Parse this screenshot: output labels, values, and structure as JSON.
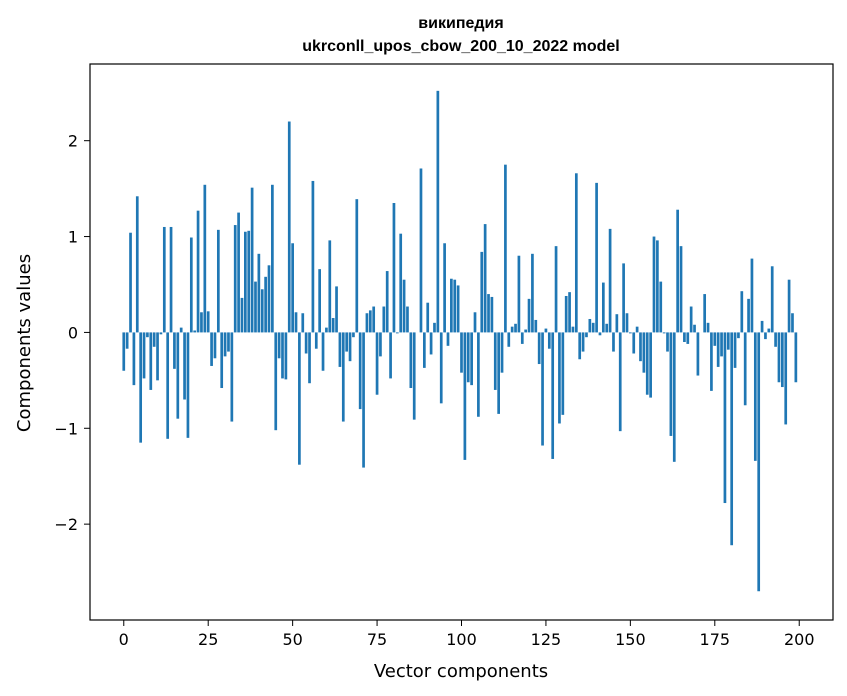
{
  "chart_data": {
    "type": "bar",
    "title_lines": [
      "википедия",
      "ukrconll_upos_cbow_200_10_2022 model"
    ],
    "xlabel": "Vector components",
    "ylabel": "Components values",
    "xlim": [
      -10,
      210
    ],
    "ylim": [
      -3.0,
      2.8
    ],
    "xticks": [
      0,
      25,
      50,
      75,
      100,
      125,
      150,
      175,
      200
    ],
    "xtick_labels": [
      "0",
      "25",
      "50",
      "75",
      "100",
      "125",
      "150",
      "175",
      "200"
    ],
    "yticks": [
      -2,
      -1,
      0,
      1,
      2
    ],
    "ytick_labels": [
      "−2",
      "−1",
      "0",
      "1",
      "2"
    ],
    "bar_color": "#1f77b4",
    "grid": false,
    "x": [
      0,
      1,
      2,
      3,
      4,
      5,
      6,
      7,
      8,
      9,
      10,
      11,
      12,
      13,
      14,
      15,
      16,
      17,
      18,
      19,
      20,
      21,
      22,
      23,
      24,
      25,
      26,
      27,
      28,
      29,
      30,
      31,
      32,
      33,
      34,
      35,
      36,
      37,
      38,
      39,
      40,
      41,
      42,
      43,
      44,
      45,
      46,
      47,
      48,
      49,
      50,
      51,
      52,
      53,
      54,
      55,
      56,
      57,
      58,
      59,
      60,
      61,
      62,
      63,
      64,
      65,
      66,
      67,
      68,
      69,
      70,
      71,
      72,
      73,
      74,
      75,
      76,
      77,
      78,
      79,
      80,
      81,
      82,
      83,
      84,
      85,
      86,
      87,
      88,
      89,
      90,
      91,
      92,
      93,
      94,
      95,
      96,
      97,
      98,
      99,
      100,
      101,
      102,
      103,
      104,
      105,
      106,
      107,
      108,
      109,
      110,
      111,
      112,
      113,
      114,
      115,
      116,
      117,
      118,
      119,
      120,
      121,
      122,
      123,
      124,
      125,
      126,
      127,
      128,
      129,
      130,
      131,
      132,
      133,
      134,
      135,
      136,
      137,
      138,
      139,
      140,
      141,
      142,
      143,
      144,
      145,
      146,
      147,
      148,
      149,
      150,
      151,
      152,
      153,
      154,
      155,
      156,
      157,
      158,
      159,
      160,
      161,
      162,
      163,
      164,
      165,
      166,
      167,
      168,
      169,
      170,
      171,
      172,
      173,
      174,
      175,
      176,
      177,
      178,
      179,
      180,
      181,
      182,
      183,
      184,
      185,
      186,
      187,
      188,
      189,
      190,
      191,
      192,
      193,
      194,
      195,
      196,
      197,
      198,
      199
    ],
    "values": [
      -0.4,
      -0.17,
      1.04,
      -0.55,
      1.42,
      -1.15,
      -0.48,
      -0.05,
      -0.6,
      -0.15,
      -0.5,
      -0.02,
      1.1,
      -1.11,
      1.1,
      -0.38,
      -0.9,
      0.05,
      -0.7,
      -1.1,
      0.99,
      0.02,
      1.27,
      0.21,
      1.54,
      0.22,
      -0.35,
      -0.27,
      1.07,
      -0.58,
      -0.25,
      -0.2,
      -0.93,
      1.12,
      1.25,
      0.36,
      1.05,
      1.06,
      1.51,
      0.53,
      0.82,
      0.45,
      0.58,
      0.7,
      1.54,
      -1.02,
      -0.27,
      -0.48,
      -0.49,
      2.2,
      0.93,
      0.21,
      -1.38,
      0.2,
      -0.22,
      -0.53,
      1.58,
      -0.17,
      0.66,
      -0.4,
      0.05,
      0.96,
      0.15,
      0.48,
      -0.36,
      -0.93,
      -0.2,
      -0.3,
      -0.05,
      1.39,
      -0.8,
      -1.41,
      0.2,
      0.23,
      0.27,
      -0.65,
      -0.25,
      0.27,
      0.64,
      -0.48,
      1.35,
      -0.01,
      1.03,
      0.55,
      0.27,
      -0.58,
      -0.91,
      0.0,
      1.71,
      -0.37,
      0.31,
      -0.23,
      0.1,
      2.52,
      -0.74,
      0.93,
      -0.14,
      0.56,
      0.55,
      0.49,
      -0.42,
      -1.33,
      -0.52,
      -0.55,
      0.21,
      -0.88,
      0.84,
      1.13,
      0.4,
      0.37,
      -0.6,
      -0.85,
      -0.42,
      1.75,
      -0.15,
      0.06,
      0.09,
      0.8,
      -0.12,
      0.03,
      0.35,
      0.82,
      0.13,
      -0.33,
      -1.18,
      0.04,
      -0.17,
      -1.32,
      0.9,
      -0.95,
      -0.86,
      0.38,
      0.42,
      0.06,
      1.66,
      -0.28,
      -0.2,
      -0.05,
      0.14,
      0.1,
      1.56,
      -0.03,
      0.52,
      0.09,
      1.08,
      -0.2,
      0.19,
      -1.03,
      0.72,
      0.2,
      -0.01,
      -0.22,
      0.06,
      -0.3,
      -0.42,
      -0.65,
      -0.68,
      1.0,
      0.96,
      0.53,
      -0.01,
      -0.2,
      -1.08,
      -1.35,
      1.28,
      0.9,
      -0.1,
      -0.12,
      0.27,
      0.08,
      -0.45,
      0.0,
      0.4,
      0.1,
      -0.61,
      -0.14,
      -0.36,
      -0.25,
      -1.78,
      -0.18,
      -2.22,
      -0.37,
      -0.06,
      0.43,
      -0.76,
      0.35,
      0.77,
      -1.34,
      -2.7,
      0.12,
      -0.07,
      0.04,
      0.69,
      -0.15,
      -0.52,
      -0.57,
      -0.96,
      0.55,
      0.2,
      -0.52
    ]
  }
}
